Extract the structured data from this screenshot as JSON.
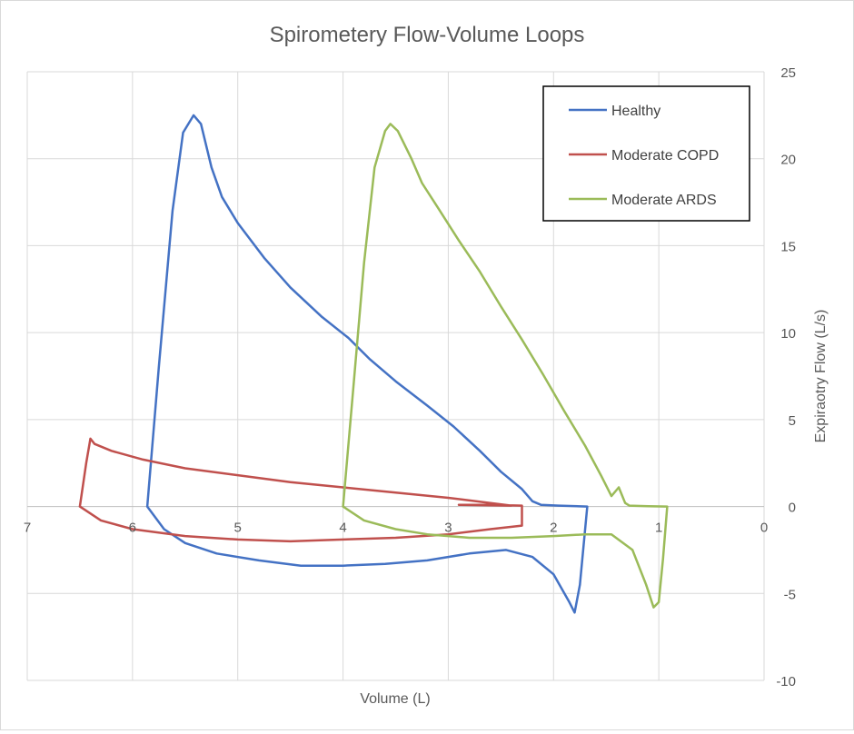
{
  "chart_data": {
    "type": "line",
    "title": "Spirometery Flow-Volume Loops",
    "xlabel": "Volume (L)",
    "ylabel": "Expiraotry Flow (L/s)",
    "xlim": [
      0,
      7
    ],
    "ylim": [
      -10,
      25
    ],
    "x_reversed": true,
    "x_ticks": [
      7,
      6,
      5,
      4,
      3,
      2,
      1,
      0
    ],
    "y_ticks": [
      25,
      20,
      15,
      10,
      5,
      0,
      -5,
      -10
    ],
    "grid": true,
    "legend_position": "top-right",
    "series": [
      {
        "name": "Healthy",
        "color": "#4472c4",
        "points": [
          [
            5.86,
            0
          ],
          [
            5.75,
            8
          ],
          [
            5.62,
            17
          ],
          [
            5.52,
            21.5
          ],
          [
            5.42,
            22.5
          ],
          [
            5.35,
            22
          ],
          [
            5.25,
            19.5
          ],
          [
            5.15,
            17.8
          ],
          [
            5.0,
            16.3
          ],
          [
            4.75,
            14.3
          ],
          [
            4.5,
            12.6
          ],
          [
            4.2,
            10.9
          ],
          [
            3.95,
            9.7
          ],
          [
            3.75,
            8.5
          ],
          [
            3.5,
            7.2
          ],
          [
            3.2,
            5.8
          ],
          [
            2.95,
            4.6
          ],
          [
            2.7,
            3.2
          ],
          [
            2.5,
            2.0
          ],
          [
            2.3,
            1.0
          ],
          [
            2.2,
            0.3
          ],
          [
            2.12,
            0.1
          ],
          [
            1.95,
            0.05
          ],
          [
            1.68,
            0
          ],
          [
            1.75,
            -4.5
          ],
          [
            1.8,
            -6.1
          ],
          [
            1.85,
            -5.5
          ],
          [
            2.0,
            -3.9
          ],
          [
            2.2,
            -2.9
          ],
          [
            2.45,
            -2.5
          ],
          [
            2.8,
            -2.7
          ],
          [
            3.2,
            -3.1
          ],
          [
            3.6,
            -3.3
          ],
          [
            4.0,
            -3.4
          ],
          [
            4.4,
            -3.4
          ],
          [
            4.8,
            -3.1
          ],
          [
            5.2,
            -2.7
          ],
          [
            5.5,
            -2.1
          ],
          [
            5.7,
            -1.3
          ],
          [
            5.86,
            0
          ]
        ]
      },
      {
        "name": "Moderate COPD",
        "color": "#c0504d",
        "points": [
          [
            6.5,
            0
          ],
          [
            6.44,
            2.5
          ],
          [
            6.4,
            3.9
          ],
          [
            6.36,
            3.6
          ],
          [
            6.2,
            3.2
          ],
          [
            5.9,
            2.7
          ],
          [
            5.5,
            2.2
          ],
          [
            5.0,
            1.8
          ],
          [
            4.5,
            1.4
          ],
          [
            4.0,
            1.1
          ],
          [
            3.5,
            0.8
          ],
          [
            3.0,
            0.5
          ],
          [
            2.6,
            0.2
          ],
          [
            2.4,
            0.05
          ],
          [
            2.9,
            0.1
          ],
          [
            2.6,
            0.1
          ],
          [
            2.3,
            0.05
          ],
          [
            2.3,
            -1.1
          ],
          [
            2.6,
            -1.3
          ],
          [
            3.0,
            -1.6
          ],
          [
            3.5,
            -1.8
          ],
          [
            4.0,
            -1.9
          ],
          [
            4.5,
            -2.0
          ],
          [
            5.0,
            -1.9
          ],
          [
            5.5,
            -1.7
          ],
          [
            6.0,
            -1.3
          ],
          [
            6.3,
            -0.8
          ],
          [
            6.5,
            0
          ]
        ]
      },
      {
        "name": "Moderate ARDS",
        "color": "#9bbb59",
        "points": [
          [
            4.0,
            0
          ],
          [
            3.9,
            7
          ],
          [
            3.8,
            14
          ],
          [
            3.7,
            19.5
          ],
          [
            3.6,
            21.6
          ],
          [
            3.55,
            22
          ],
          [
            3.48,
            21.6
          ],
          [
            3.35,
            20
          ],
          [
            3.25,
            18.6
          ],
          [
            3.1,
            17.2
          ],
          [
            2.9,
            15.3
          ],
          [
            2.7,
            13.5
          ],
          [
            2.5,
            11.5
          ],
          [
            2.3,
            9.6
          ],
          [
            2.1,
            7.6
          ],
          [
            1.9,
            5.5
          ],
          [
            1.7,
            3.5
          ],
          [
            1.55,
            1.8
          ],
          [
            1.45,
            0.6
          ],
          [
            1.38,
            1.1
          ],
          [
            1.32,
            0.2
          ],
          [
            1.28,
            0.05
          ],
          [
            1.1,
            0.02
          ],
          [
            0.92,
            0
          ],
          [
            0.96,
            -3
          ],
          [
            1.0,
            -5.5
          ],
          [
            1.05,
            -5.8
          ],
          [
            1.12,
            -4.5
          ],
          [
            1.25,
            -2.5
          ],
          [
            1.45,
            -1.6
          ],
          [
            1.7,
            -1.6
          ],
          [
            2.0,
            -1.7
          ],
          [
            2.4,
            -1.8
          ],
          [
            2.8,
            -1.8
          ],
          [
            3.2,
            -1.6
          ],
          [
            3.5,
            -1.3
          ],
          [
            3.8,
            -0.8
          ],
          [
            4.0,
            0
          ]
        ]
      }
    ]
  }
}
